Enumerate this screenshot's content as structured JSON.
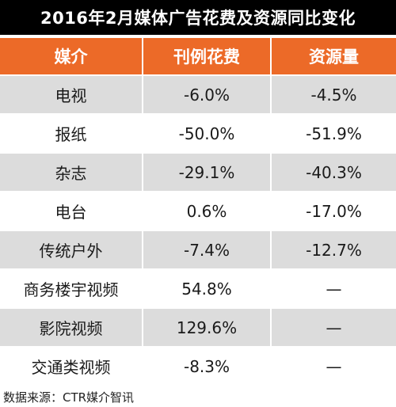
{
  "title": "2016年2月媒体广告花费及资源同比变化",
  "source_note": "数据来源：CTR媒介智讯",
  "colors": {
    "title_bg": "#000000",
    "header_bg": "#ec6a28",
    "row_shaded": "#dcdcdc",
    "row_plain": "#ffffff"
  },
  "chart_data": {
    "type": "table",
    "title": "2016年2月媒体广告花费及资源同比变化",
    "columns": [
      "媒介",
      "刊例花费",
      "资源量"
    ],
    "rows": [
      [
        "电视",
        "-6.0%",
        "-4.5%"
      ],
      [
        "报纸",
        "-50.0%",
        "-51.9%"
      ],
      [
        "杂志",
        "-29.1%",
        "-40.3%"
      ],
      [
        "电台",
        "0.6%",
        "-17.0%"
      ],
      [
        "传统户外",
        "-7.4%",
        "-12.7%"
      ],
      [
        "商务楼宇视频",
        "54.8%",
        "—"
      ],
      [
        "影院视频",
        "129.6%",
        "—"
      ],
      [
        "交通类视频",
        "-8.3%",
        "—"
      ]
    ]
  }
}
